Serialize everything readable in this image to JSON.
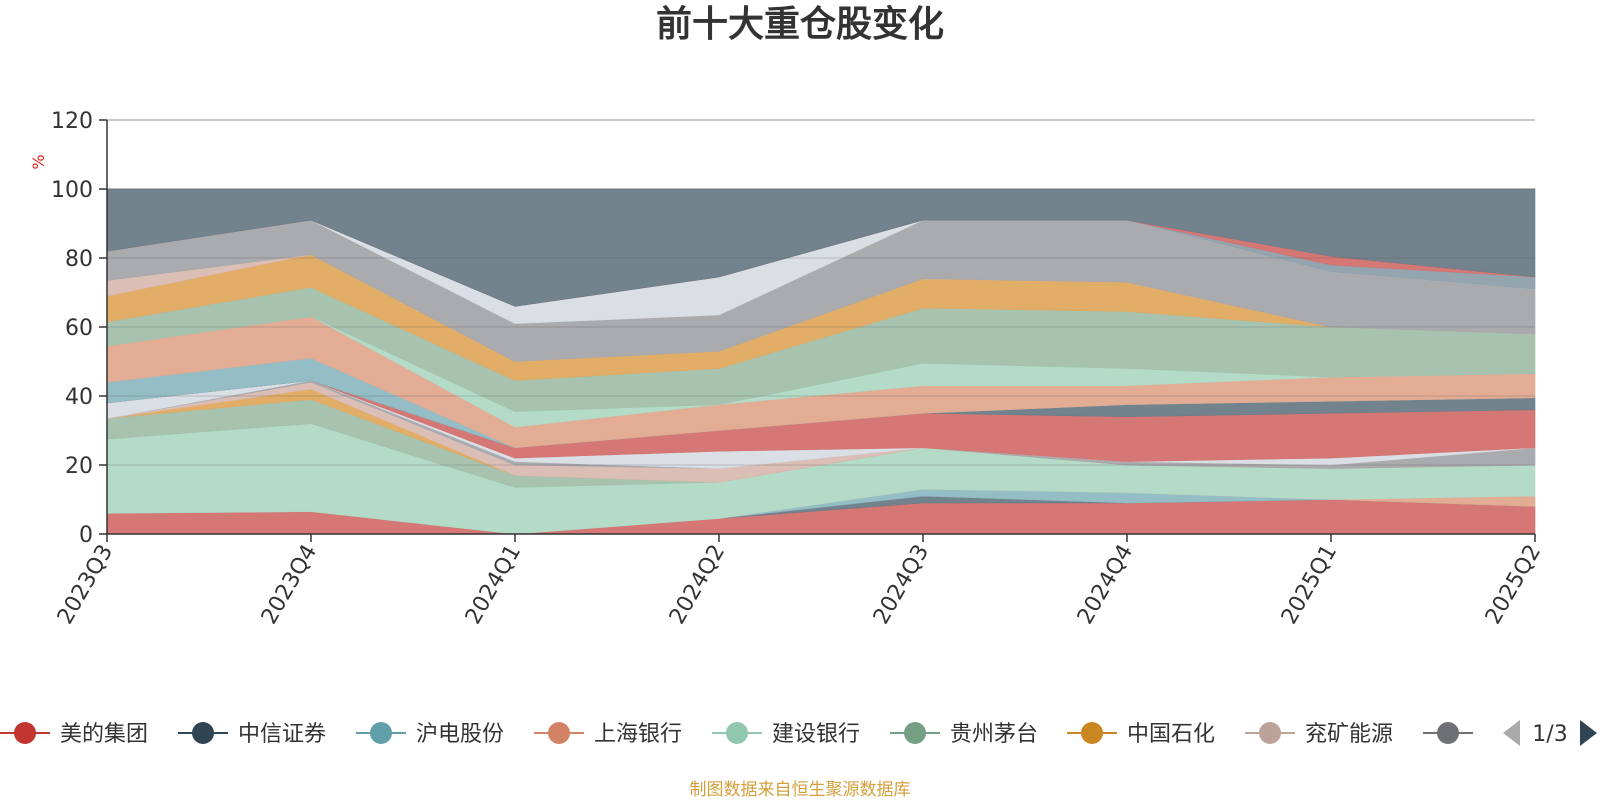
{
  "chart_data": {
    "type": "area",
    "title": "前十大重仓股变化",
    "ylabel": "%",
    "ylim": [
      0,
      120
    ],
    "yticks": [
      0,
      20,
      40,
      60,
      80,
      100,
      120
    ],
    "grid": true,
    "categories": [
      "2023Q3",
      "2023Q4",
      "2024Q1",
      "2024Q2",
      "2024Q3",
      "2024Q4",
      "2025Q1",
      "2025Q2"
    ],
    "bands": [
      {
        "color": "#d3706d",
        "lower": [
          0,
          0,
          0,
          0,
          0,
          0,
          0,
          0
        ],
        "upper": [
          6,
          6.5,
          0,
          4.5,
          9,
          9,
          10,
          8
        ]
      },
      {
        "color": "#6b7c88",
        "lower": [
          6,
          6.5,
          0,
          4.5,
          9,
          9,
          10,
          8
        ],
        "upper": [
          6,
          6.5,
          0,
          4.5,
          11,
          9,
          10,
          8
        ]
      },
      {
        "color": "#8fb9c2",
        "lower": [
          6,
          6.5,
          0,
          4.5,
          11,
          9,
          10,
          8
        ],
        "upper": [
          6,
          6.5,
          0,
          4.5,
          13,
          12,
          10,
          8
        ]
      },
      {
        "color": "#e1a98f",
        "lower": [
          6,
          6.5,
          0,
          4.5,
          13,
          12,
          10,
          8
        ],
        "upper": [
          6,
          6.5,
          0,
          4.5,
          13,
          12,
          10,
          11
        ]
      },
      {
        "color": "#b0d9c5",
        "lower": [
          6,
          6.5,
          0,
          4.5,
          13,
          12,
          10,
          11
        ],
        "upper": [
          27.5,
          32,
          13.5,
          15,
          25,
          20,
          19,
          20
        ]
      },
      {
        "color": "#a2c0ac",
        "lower": [
          27.5,
          32,
          13.5,
          15,
          25,
          20,
          19,
          20
        ],
        "upper": [
          33.5,
          39,
          17,
          15,
          25,
          20,
          19,
          20
        ]
      },
      {
        "color": "#e0a95f",
        "lower": [
          33.5,
          39,
          17,
          15,
          25,
          20,
          19,
          20
        ],
        "upper": [
          33.5,
          42,
          17,
          15,
          25,
          20,
          19,
          20
        ]
      },
      {
        "color": "#d9bab2",
        "lower": [
          33.5,
          42,
          17,
          15,
          25,
          20,
          19,
          20
        ],
        "upper": [
          33.5,
          44,
          20,
          19,
          25,
          20,
          19,
          20
        ]
      },
      {
        "color": "#a5a7aa",
        "lower": [
          33.5,
          44,
          20,
          19,
          25,
          20,
          19,
          20
        ],
        "upper": [
          33.5,
          44.5,
          21,
          19,
          25,
          21,
          20,
          25
        ]
      },
      {
        "color": "#d8dde4",
        "lower": [
          33.5,
          44.5,
          21,
          19,
          25,
          21,
          20,
          25
        ],
        "upper": [
          38,
          44.5,
          22,
          24,
          25,
          21,
          22,
          25
        ]
      },
      {
        "color": "#d3706d",
        "lower": [
          38,
          44.5,
          22,
          24,
          25,
          21,
          22,
          25
        ],
        "upper": [
          38,
          44.5,
          25,
          30,
          35,
          34,
          35,
          36
        ]
      },
      {
        "color": "#6b7c88",
        "lower": [
          38,
          44.5,
          25,
          30,
          35,
          34,
          35,
          36
        ],
        "upper": [
          38,
          44.5,
          25,
          30,
          35,
          37.5,
          38.5,
          39.5
        ]
      },
      {
        "color": "#8fb9c2",
        "lower": [
          38,
          44.5,
          25,
          30,
          35,
          37.5,
          38.5,
          39.5
        ],
        "upper": [
          44,
          51,
          25,
          30,
          35,
          37.5,
          38.5,
          39.5
        ]
      },
      {
        "color": "#e1a98f",
        "lower": [
          44,
          51,
          25,
          30,
          35,
          37.5,
          38.5,
          39.5
        ],
        "upper": [
          54.5,
          63,
          31,
          37.5,
          43,
          43,
          45.5,
          46.5
        ]
      },
      {
        "color": "#b0d9c5",
        "lower": [
          54.5,
          63,
          31,
          37.5,
          43,
          43,
          45.5,
          46.5
        ],
        "upper": [
          54.5,
          63,
          35.5,
          37.5,
          49.5,
          48,
          45.5,
          46.5
        ]
      },
      {
        "color": "#a2c0ac",
        "lower": [
          54.5,
          63,
          35.5,
          37.5,
          49.5,
          48,
          45.5,
          46.5
        ],
        "upper": [
          61.5,
          71.5,
          44.5,
          48,
          65.5,
          64.5,
          60,
          58
        ]
      },
      {
        "color": "#e0a95f",
        "lower": [
          61.5,
          71.5,
          44.5,
          48,
          65.5,
          64.5,
          60,
          58
        ],
        "upper": [
          69,
          81,
          50,
          53,
          74,
          73,
          60,
          58
        ]
      },
      {
        "color": "#d9bab2",
        "lower": [
          69,
          81,
          50,
          53,
          74,
          73,
          60,
          58
        ],
        "upper": [
          73.5,
          81,
          50,
          53,
          74,
          73,
          60,
          58
        ]
      },
      {
        "color": "#a5a7aa",
        "lower": [
          73.5,
          81,
          50,
          53,
          74,
          73,
          60,
          58
        ],
        "upper": [
          82,
          91,
          61,
          63.5,
          91,
          91,
          76,
          71
        ]
      },
      {
        "color": "#d8dde4",
        "lower": [
          82,
          91,
          61,
          63.5,
          91,
          91,
          76,
          71
        ],
        "upper": [
          82,
          91,
          66,
          74.5,
          91,
          91,
          76,
          71
        ]
      },
      {
        "color": "#8fa0ab",
        "lower": [
          82,
          91,
          66,
          74.5,
          91,
          91,
          76,
          71
        ],
        "upper": [
          82,
          91,
          66,
          74.5,
          91,
          91,
          78,
          74.5
        ]
      },
      {
        "color": "#d3706d",
        "lower": [
          82,
          91,
          66,
          74.5,
          91,
          91,
          78,
          74.5
        ],
        "upper": [
          82,
          91,
          66,
          74.5,
          91,
          91,
          80.5,
          74.5
        ]
      },
      {
        "color": "#6b7c88",
        "lower": [
          82,
          91,
          66,
          74.5,
          91,
          91,
          80.5,
          74.5
        ],
        "upper": [
          100,
          100,
          100,
          100,
          100,
          100,
          100,
          100
        ]
      }
    ],
    "legend": [
      {
        "name": "美的集团",
        "color": "#c23531"
      },
      {
        "name": "中信证券",
        "color": "#2f4554"
      },
      {
        "name": "沪电股份",
        "color": "#61a0a8"
      },
      {
        "name": "上海银行",
        "color": "#d48265"
      },
      {
        "name": "建设银行",
        "color": "#91c7ae"
      },
      {
        "name": "贵州茅台",
        "color": "#749f83"
      },
      {
        "name": "中国石化",
        "color": "#ca8622"
      },
      {
        "name": "兖矿能源",
        "color": "#bda29a"
      },
      {
        "name": "",
        "color": "#6e7074"
      }
    ],
    "legend_placement": "bottom",
    "legend_page": "1/3"
  },
  "footer": {
    "source": "制图数据来自恒生聚源数据库"
  }
}
